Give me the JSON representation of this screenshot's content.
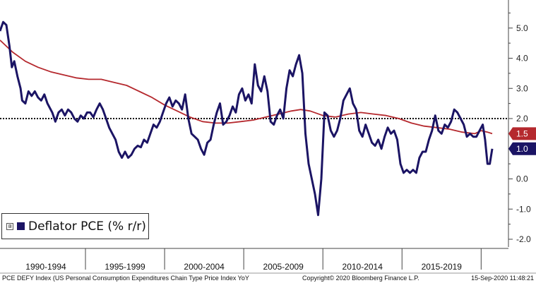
{
  "chart_data": {
    "type": "line",
    "ylim": [
      -2.2,
      6.0
    ],
    "xlim": [
      1989.6,
      2021.6
    ],
    "y_ticks": [
      "5.0",
      "4.0",
      "3.0",
      "2.0",
      "1.0",
      "0.0",
      "-1.0",
      "-2.0"
    ],
    "x_categories": [
      "1990-1994",
      "1995-1999",
      "2000-2004",
      "2005-2009",
      "2010-2014",
      "2015-2019"
    ],
    "reference_line": {
      "value": 2.0,
      "style": "dotted",
      "color": "#000000"
    },
    "legend": {
      "label": "Deflator PCE (% r/r)",
      "expander": "⊞",
      "placement": "bottom-left"
    },
    "series": [
      {
        "name": "Deflator PCE (% r/r)",
        "color": "#1b1464",
        "last_value_label": "1.0",
        "points": [
          [
            1989.6,
            4.9
          ],
          [
            1989.8,
            5.2
          ],
          [
            1990.0,
            5.1
          ],
          [
            1990.2,
            4.4
          ],
          [
            1990.35,
            3.7
          ],
          [
            1990.5,
            3.9
          ],
          [
            1990.7,
            3.4
          ],
          [
            1990.9,
            3.0
          ],
          [
            1991.0,
            2.6
          ],
          [
            1991.2,
            2.5
          ],
          [
            1991.4,
            2.9
          ],
          [
            1991.6,
            2.75
          ],
          [
            1991.8,
            2.9
          ],
          [
            1992.0,
            2.7
          ],
          [
            1992.2,
            2.6
          ],
          [
            1992.4,
            2.8
          ],
          [
            1992.6,
            2.5
          ],
          [
            1992.9,
            2.2
          ],
          [
            1993.1,
            1.9
          ],
          [
            1993.3,
            2.2
          ],
          [
            1993.5,
            2.3
          ],
          [
            1993.7,
            2.1
          ],
          [
            1993.9,
            2.3
          ],
          [
            1994.1,
            2.2
          ],
          [
            1994.3,
            2.0
          ],
          [
            1994.5,
            1.9
          ],
          [
            1994.7,
            2.1
          ],
          [
            1994.9,
            2.0
          ],
          [
            1995.1,
            2.2
          ],
          [
            1995.3,
            2.2
          ],
          [
            1995.5,
            2.05
          ],
          [
            1995.7,
            2.3
          ],
          [
            1995.9,
            2.5
          ],
          [
            1996.1,
            2.3
          ],
          [
            1996.3,
            2.0
          ],
          [
            1996.5,
            1.7
          ],
          [
            1996.7,
            1.5
          ],
          [
            1996.9,
            1.3
          ],
          [
            1997.1,
            0.9
          ],
          [
            1997.3,
            0.7
          ],
          [
            1997.5,
            0.9
          ],
          [
            1997.7,
            0.7
          ],
          [
            1997.9,
            0.8
          ],
          [
            1998.1,
            1.0
          ],
          [
            1998.3,
            1.1
          ],
          [
            1998.5,
            1.05
          ],
          [
            1998.7,
            1.3
          ],
          [
            1998.9,
            1.2
          ],
          [
            1999.1,
            1.5
          ],
          [
            1999.3,
            1.8
          ],
          [
            1999.5,
            1.7
          ],
          [
            1999.7,
            1.9
          ],
          [
            1999.9,
            2.2
          ],
          [
            2000.1,
            2.5
          ],
          [
            2000.3,
            2.7
          ],
          [
            2000.5,
            2.4
          ],
          [
            2000.7,
            2.6
          ],
          [
            2000.9,
            2.5
          ],
          [
            2001.1,
            2.3
          ],
          [
            2001.3,
            2.8
          ],
          [
            2001.5,
            2.0
          ],
          [
            2001.7,
            1.5
          ],
          [
            2001.9,
            1.4
          ],
          [
            2002.1,
            1.3
          ],
          [
            2002.3,
            1.0
          ],
          [
            2002.5,
            0.8
          ],
          [
            2002.7,
            1.2
          ],
          [
            2002.9,
            1.3
          ],
          [
            2003.1,
            1.8
          ],
          [
            2003.3,
            2.2
          ],
          [
            2003.5,
            2.5
          ],
          [
            2003.7,
            1.8
          ],
          [
            2003.9,
            1.9
          ],
          [
            2004.1,
            2.1
          ],
          [
            2004.3,
            2.4
          ],
          [
            2004.5,
            2.2
          ],
          [
            2004.7,
            2.8
          ],
          [
            2004.9,
            3.0
          ],
          [
            2005.1,
            2.6
          ],
          [
            2005.3,
            2.8
          ],
          [
            2005.5,
            2.5
          ],
          [
            2005.7,
            3.8
          ],
          [
            2005.9,
            3.1
          ],
          [
            2006.1,
            2.9
          ],
          [
            2006.3,
            3.4
          ],
          [
            2006.5,
            2.9
          ],
          [
            2006.7,
            1.9
          ],
          [
            2006.9,
            1.8
          ],
          [
            2007.1,
            2.1
          ],
          [
            2007.3,
            2.3
          ],
          [
            2007.5,
            2.0
          ],
          [
            2007.7,
            3.0
          ],
          [
            2007.9,
            3.6
          ],
          [
            2008.1,
            3.4
          ],
          [
            2008.3,
            3.8
          ],
          [
            2008.5,
            4.1
          ],
          [
            2008.7,
            3.5
          ],
          [
            2008.9,
            1.5
          ],
          [
            2009.1,
            0.5
          ],
          [
            2009.3,
            0.0
          ],
          [
            2009.5,
            -0.5
          ],
          [
            2009.7,
            -1.2
          ],
          [
            2009.9,
            0.0
          ],
          [
            2010.1,
            2.2
          ],
          [
            2010.3,
            2.1
          ],
          [
            2010.5,
            1.6
          ],
          [
            2010.7,
            1.4
          ],
          [
            2010.9,
            1.6
          ],
          [
            2011.1,
            2.0
          ],
          [
            2011.3,
            2.6
          ],
          [
            2011.5,
            2.8
          ],
          [
            2011.7,
            3.0
          ],
          [
            2011.9,
            2.5
          ],
          [
            2012.1,
            2.3
          ],
          [
            2012.3,
            1.6
          ],
          [
            2012.5,
            1.4
          ],
          [
            2012.7,
            1.8
          ],
          [
            2012.9,
            1.5
          ],
          [
            2013.1,
            1.2
          ],
          [
            2013.3,
            1.1
          ],
          [
            2013.5,
            1.3
          ],
          [
            2013.7,
            1.0
          ],
          [
            2013.9,
            1.4
          ],
          [
            2014.1,
            1.7
          ],
          [
            2014.3,
            1.5
          ],
          [
            2014.5,
            1.6
          ],
          [
            2014.7,
            1.3
          ],
          [
            2014.9,
            0.5
          ],
          [
            2015.1,
            0.2
          ],
          [
            2015.3,
            0.3
          ],
          [
            2015.5,
            0.2
          ],
          [
            2015.7,
            0.3
          ],
          [
            2015.9,
            0.2
          ],
          [
            2016.1,
            0.7
          ],
          [
            2016.3,
            0.9
          ],
          [
            2016.5,
            0.9
          ],
          [
            2016.7,
            1.3
          ],
          [
            2016.9,
            1.6
          ],
          [
            2017.1,
            2.1
          ],
          [
            2017.3,
            1.6
          ],
          [
            2017.5,
            1.5
          ],
          [
            2017.7,
            1.8
          ],
          [
            2017.9,
            1.7
          ],
          [
            2018.1,
            1.9
          ],
          [
            2018.3,
            2.3
          ],
          [
            2018.5,
            2.2
          ],
          [
            2018.7,
            2.0
          ],
          [
            2018.9,
            1.8
          ],
          [
            2019.1,
            1.4
          ],
          [
            2019.3,
            1.5
          ],
          [
            2019.5,
            1.4
          ],
          [
            2019.7,
            1.4
          ],
          [
            2019.9,
            1.6
          ],
          [
            2020.1,
            1.8
          ],
          [
            2020.25,
            1.3
          ],
          [
            2020.4,
            0.5
          ],
          [
            2020.55,
            0.5
          ],
          [
            2020.7,
            1.0
          ]
        ]
      },
      {
        "name": "",
        "color": "#b5292e",
        "last_value_label": "1.5",
        "points": [
          [
            1989.6,
            4.6
          ],
          [
            1990.4,
            4.2
          ],
          [
            1991.2,
            3.9
          ],
          [
            1992.0,
            3.7
          ],
          [
            1992.8,
            3.55
          ],
          [
            1993.6,
            3.45
          ],
          [
            1994.4,
            3.35
          ],
          [
            1995.2,
            3.3
          ],
          [
            1996.0,
            3.3
          ],
          [
            1996.8,
            3.2
          ],
          [
            1997.6,
            3.1
          ],
          [
            1998.4,
            2.9
          ],
          [
            1999.2,
            2.7
          ],
          [
            2000.0,
            2.45
          ],
          [
            2000.8,
            2.25
          ],
          [
            2001.6,
            2.05
          ],
          [
            2002.4,
            1.9
          ],
          [
            2003.2,
            1.85
          ],
          [
            2004.0,
            1.85
          ],
          [
            2004.8,
            1.9
          ],
          [
            2005.6,
            1.95
          ],
          [
            2006.4,
            2.05
          ],
          [
            2007.2,
            2.15
          ],
          [
            2008.0,
            2.25
          ],
          [
            2008.6,
            2.3
          ],
          [
            2009.2,
            2.25
          ],
          [
            2010.0,
            2.1
          ],
          [
            2010.8,
            2.05
          ],
          [
            2011.6,
            2.15
          ],
          [
            2012.4,
            2.2
          ],
          [
            2013.2,
            2.15
          ],
          [
            2014.0,
            2.1
          ],
          [
            2014.8,
            2.0
          ],
          [
            2015.6,
            1.85
          ],
          [
            2016.4,
            1.75
          ],
          [
            2017.2,
            1.7
          ],
          [
            2018.0,
            1.65
          ],
          [
            2018.8,
            1.55
          ],
          [
            2019.6,
            1.5
          ],
          [
            2020.0,
            1.6
          ],
          [
            2020.4,
            1.55
          ],
          [
            2020.7,
            1.5
          ]
        ]
      }
    ]
  },
  "footer": {
    "left": "PCE DEFY Index (US Personal Consumption Expenditures Chain Type Price Index YoY",
    "center": "Copyright© 2020 Bloomberg Finance L.P.",
    "right": "15-Sep-2020 11:48:21"
  }
}
